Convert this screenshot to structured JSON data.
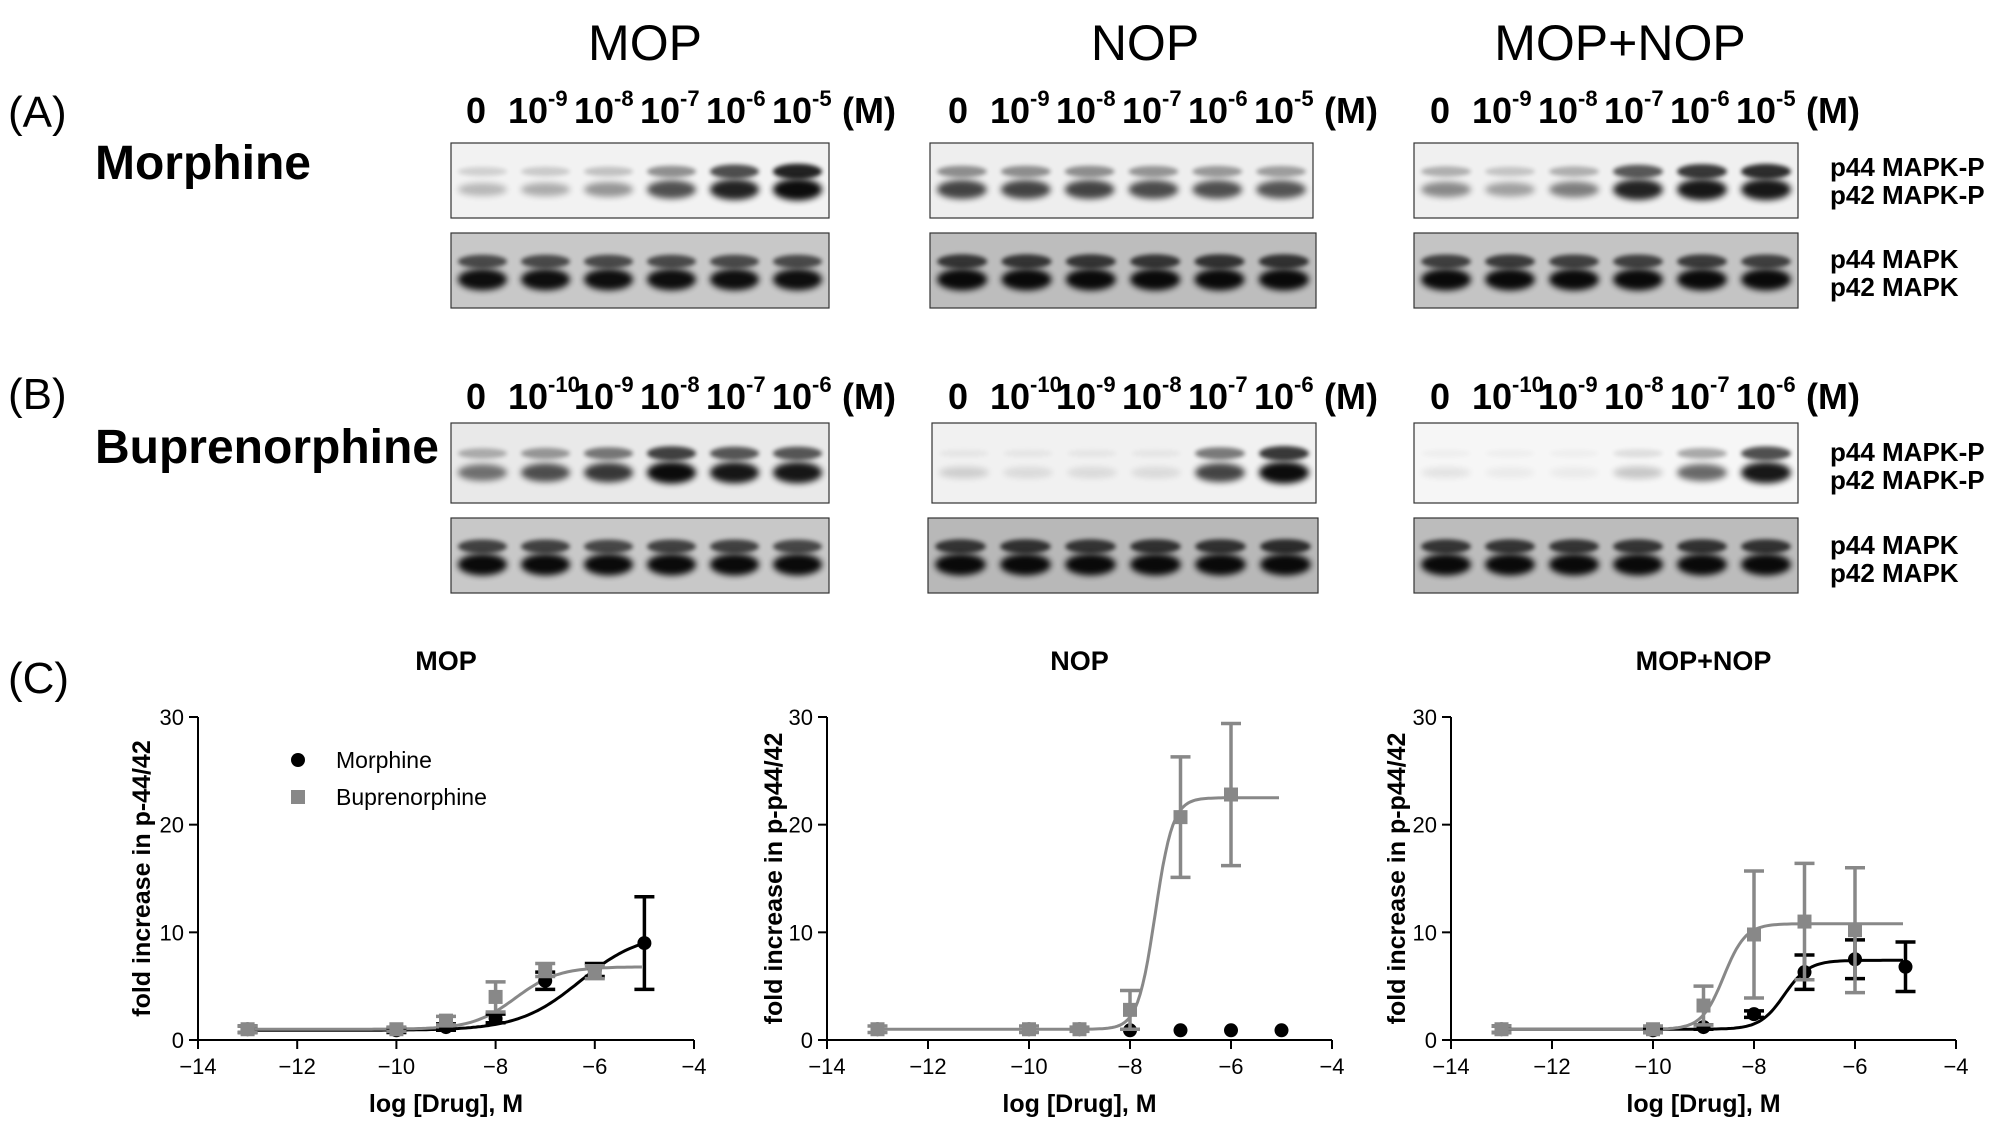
{
  "panels": {
    "A": "(A)",
    "B": "(B)",
    "C": "(C)"
  },
  "column_titles": [
    "MOP",
    "NOP",
    "MOP+NOP"
  ],
  "drugs": {
    "morphine": "Morphine",
    "buprenorphine": "Buprenorphine"
  },
  "conc_labels": {
    "morphine": {
      "zero": "0",
      "exps": [
        "-9",
        "-8",
        "-7",
        "-6",
        "-5"
      ],
      "base": "10",
      "unit": "(M)"
    },
    "buprenorphine": {
      "zero": "0",
      "exps": [
        "-10",
        "-9",
        "-8",
        "-7",
        "-6"
      ],
      "base": "10",
      "unit": "(M)"
    }
  },
  "band_labels": {
    "phospho": [
      "p44 MAPK-P",
      "p42 MAPK-P"
    ],
    "total": [
      "p44 MAPK",
      "p42 MAPK"
    ]
  },
  "colors": {
    "morphine": "#000000",
    "buprenorphine": "#888888"
  },
  "chart_data": [
    {
      "type": "scatter",
      "title": "MOP",
      "xlabel": "log [Drug], M",
      "ylabel": "fold increase in p-44/42",
      "xlim": [
        -14,
        -4
      ],
      "ylim": [
        0,
        30
      ],
      "xticks": [
        -14,
        -12,
        -10,
        -8,
        -6,
        -4
      ],
      "yticks": [
        0,
        10,
        20,
        30
      ],
      "legend": {
        "placement": "top-left",
        "entries": [
          "Morphine",
          "Buprenorphine"
        ]
      },
      "series": [
        {
          "name": "Morphine",
          "color": "#000000",
          "marker": "circle",
          "x": [
            -13,
            -10,
            -9,
            -8,
            -7,
            -6,
            -5
          ],
          "y": [
            1,
            0.9,
            1.2,
            2,
            5.5,
            6.5,
            9
          ],
          "err": [
            0.3,
            0.2,
            0.3,
            0.4,
            0.8,
            0.6,
            4.3
          ]
        },
        {
          "name": "Buprenorphine",
          "color": "#888888",
          "marker": "square",
          "x": [
            -13,
            -10,
            -9,
            -8,
            -7,
            -6
          ],
          "y": [
            1,
            1,
            1.8,
            4,
            6.5,
            6.3
          ],
          "err": [
            0.3,
            0.2,
            0.4,
            1.4,
            0.6,
            0.6
          ]
        }
      ],
      "fits": [
        {
          "color": "#000000",
          "bottom": 0.9,
          "top": 10,
          "logec50": -6.3,
          "hill": 0.7
        },
        {
          "color": "#888888",
          "bottom": 1.0,
          "top": 6.8,
          "logec50": -7.6,
          "hill": 1.0
        }
      ]
    },
    {
      "type": "scatter",
      "title": "NOP",
      "xlabel": "log [Drug], M",
      "ylabel": "fold increase in p-p44/42",
      "xlim": [
        -14,
        -4
      ],
      "ylim": [
        0,
        30
      ],
      "xticks": [
        -14,
        -12,
        -10,
        -8,
        -6,
        -4
      ],
      "yticks": [
        0,
        10,
        20,
        30
      ],
      "series": [
        {
          "name": "Morphine",
          "color": "#000000",
          "marker": "circle",
          "x": [
            -13,
            -10,
            -9,
            -8,
            -7,
            -6,
            -5
          ],
          "y": [
            1,
            1,
            1,
            0.9,
            0.9,
            0.9,
            0.9
          ],
          "err": [
            0,
            0,
            0,
            0,
            0,
            0,
            0
          ]
        },
        {
          "name": "Buprenorphine",
          "color": "#888888",
          "marker": "square",
          "x": [
            -13,
            -10,
            -9,
            -8,
            -7,
            -6
          ],
          "y": [
            1,
            1,
            1,
            2.8,
            20.7,
            22.8
          ],
          "err": [
            0.3,
            0.3,
            0.2,
            1.8,
            5.6,
            6.6
          ]
        }
      ],
      "fits": [
        {
          "color": "#888888",
          "bottom": 1.0,
          "top": 22.5,
          "logec50": -7.5,
          "hill": 2.5
        }
      ]
    },
    {
      "type": "scatter",
      "title": "MOP+NOP",
      "xlabel": "log [Drug], M",
      "ylabel": "fold increase in p-p44/42",
      "xlim": [
        -14,
        -4
      ],
      "ylim": [
        0,
        30
      ],
      "xticks": [
        -14,
        -12,
        -10,
        -8,
        -6,
        -4
      ],
      "yticks": [
        0,
        10,
        20,
        30
      ],
      "series": [
        {
          "name": "Morphine",
          "color": "#000000",
          "marker": "circle",
          "x": [
            -13,
            -10,
            -9,
            -8,
            -7,
            -6,
            -5
          ],
          "y": [
            1,
            0.9,
            1.2,
            2.4,
            6.3,
            7.5,
            6.8
          ],
          "err": [
            0.3,
            0.2,
            0.2,
            0.3,
            1.6,
            1.8,
            2.3
          ]
        },
        {
          "name": "Buprenorphine",
          "color": "#888888",
          "marker": "square",
          "x": [
            -13,
            -10,
            -9,
            -8,
            -7,
            -6
          ],
          "y": [
            1,
            1,
            3.2,
            9.8,
            11,
            10.2
          ],
          "err": [
            0.3,
            0.3,
            1.8,
            5.9,
            5.4,
            5.8
          ]
        }
      ],
      "fits": [
        {
          "color": "#000000",
          "bottom": 1.0,
          "top": 7.4,
          "logec50": -7.4,
          "hill": 1.8
        },
        {
          "color": "#888888",
          "bottom": 1.0,
          "top": 10.8,
          "logec50": -8.6,
          "hill": 2.0
        }
      ]
    }
  ]
}
